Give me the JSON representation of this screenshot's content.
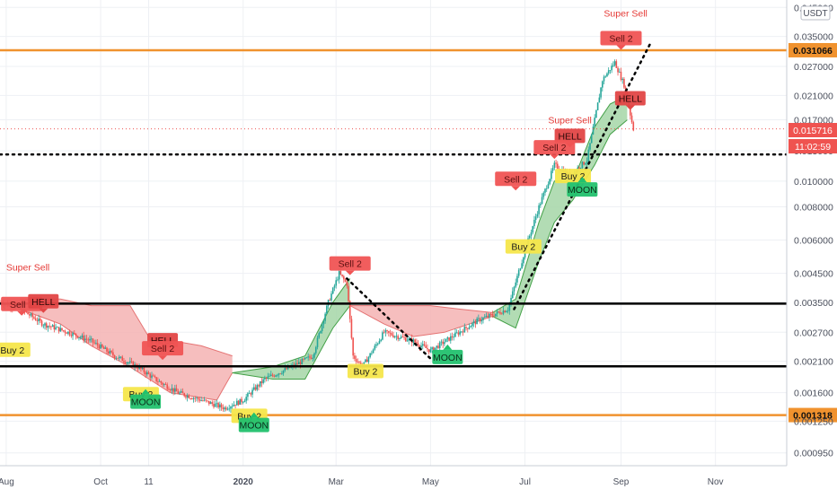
{
  "chart_data": {
    "type": "candlestick",
    "title": "",
    "quote_currency": "USDT",
    "price_axis_ticks": [
      "0.045000",
      "0.035000",
      "0.027000",
      "0.021000",
      "0.017000",
      "0.013000",
      "0.010000",
      "0.008000",
      "0.006000",
      "0.004500",
      "0.003500",
      "0.002700",
      "0.002100",
      "0.001600",
      "0.001250",
      "0.000950"
    ],
    "time_axis_labels": [
      {
        "label": "Aug",
        "date": "2019-08-01"
      },
      {
        "label": "Oct",
        "date": "2019-10-01"
      },
      {
        "label": "11",
        "date": "2019-11-01"
      },
      {
        "label": "2020",
        "date": "2020-01-01"
      },
      {
        "label": "Mar",
        "date": "2020-03-01"
      },
      {
        "label": "May",
        "date": "2020-05-01"
      },
      {
        "label": "Jul",
        "date": "2020-07-01"
      },
      {
        "label": "Sep",
        "date": "2020-09-01"
      },
      {
        "label": "Nov",
        "date": "2020-11-01"
      }
    ],
    "price_scale": "log",
    "y_range": [
      0.00085,
      0.048
    ],
    "x_range": [
      "2019-07-28",
      "2020-12-17"
    ],
    "current_price": "0.015716",
    "countdown": "11:02:59",
    "horizontal_levels": [
      {
        "price": 0.031066,
        "label": "0.031066",
        "color": "#f0922e"
      },
      {
        "price": 0.001318,
        "label": "0.001318",
        "color": "#f0922e"
      },
      {
        "price": 0.00346,
        "label": "",
        "color": "#000000"
      },
      {
        "price": 0.00201,
        "label": "",
        "color": "#000000"
      }
    ],
    "dotted_lines": [
      {
        "y": 0.0126,
        "from": "2019-07-28",
        "to": "2020-12-17"
      },
      {
        "from_date": "2020-03-08",
        "from": 0.0043,
        "to_date": "2020-05-01",
        "to": 0.00215
      },
      {
        "from_date": "2020-06-24",
        "from": 0.0033,
        "to_date": "2020-09-20",
        "to": 0.033
      }
    ],
    "cloud_segments": [
      {
        "polarity": "bearish",
        "upper": [
          [
            "2019-08-10",
            0.0036
          ],
          [
            "2019-09-05",
            0.0036
          ],
          [
            "2019-09-25",
            0.0034
          ],
          [
            "2019-10-20",
            0.0034
          ],
          [
            "2019-11-01",
            0.0026
          ],
          [
            "2019-12-05",
            0.0024
          ],
          [
            "2019-12-25",
            0.0022
          ]
        ],
        "lower": [
          [
            "2019-08-10",
            0.0033
          ],
          [
            "2019-09-05",
            0.0029
          ],
          [
            "2019-09-25",
            0.0024
          ],
          [
            "2019-10-20",
            0.002
          ],
          [
            "2019-11-15",
            0.0016
          ],
          [
            "2019-12-15",
            0.0015
          ],
          [
            "2019-12-25",
            0.0019
          ]
        ]
      },
      {
        "polarity": "bullish",
        "upper": [
          [
            "2019-12-25",
            0.0019
          ],
          [
            "2020-01-20",
            0.002
          ],
          [
            "2020-02-10",
            0.0022
          ],
          [
            "2020-02-28",
            0.0035
          ],
          [
            "2020-03-10",
            0.0043
          ]
        ],
        "lower": [
          [
            "2019-12-25",
            0.0019
          ],
          [
            "2020-01-20",
            0.0018
          ],
          [
            "2020-02-10",
            0.0018
          ],
          [
            "2020-02-28",
            0.0028
          ],
          [
            "2020-03-10",
            0.0034
          ]
        ]
      },
      {
        "polarity": "bearish",
        "upper": [
          [
            "2020-03-10",
            0.0034
          ],
          [
            "2020-04-10",
            0.0034
          ],
          [
            "2020-05-01",
            0.0034
          ],
          [
            "2020-05-20",
            0.0033
          ],
          [
            "2020-06-10",
            0.0032
          ]
        ],
        "lower": [
          [
            "2020-03-10",
            0.0034
          ],
          [
            "2020-04-01",
            0.0029
          ],
          [
            "2020-04-20",
            0.0026
          ],
          [
            "2020-05-10",
            0.0027
          ],
          [
            "2020-06-10",
            0.0031
          ]
        ]
      },
      {
        "polarity": "bullish",
        "upper": [
          [
            "2020-06-10",
            0.0032
          ],
          [
            "2020-06-25",
            0.0036
          ],
          [
            "2020-07-10",
            0.007
          ],
          [
            "2020-07-20",
            0.01
          ],
          [
            "2020-08-01",
            0.01
          ],
          [
            "2020-08-15",
            0.016
          ],
          [
            "2020-08-25",
            0.0195
          ],
          [
            "2020-09-05",
            0.021
          ]
        ],
        "lower": [
          [
            "2020-06-10",
            0.0031
          ],
          [
            "2020-06-25",
            0.0028
          ],
          [
            "2020-07-10",
            0.005
          ],
          [
            "2020-07-20",
            0.007
          ],
          [
            "2020-08-01",
            0.0085
          ],
          [
            "2020-08-15",
            0.0115
          ],
          [
            "2020-08-25",
            0.015
          ],
          [
            "2020-09-05",
            0.017
          ]
        ]
      }
    ],
    "price_path": [
      [
        "2019-07-28",
        0.0035
      ],
      [
        "2019-08-10",
        0.0033
      ],
      [
        "2019-08-25",
        0.0029
      ],
      [
        "2019-09-10",
        0.0027
      ],
      [
        "2019-09-25",
        0.0025
      ],
      [
        "2019-10-10",
        0.0022
      ],
      [
        "2019-10-25",
        0.002
      ],
      [
        "2019-11-05",
        0.0018
      ],
      [
        "2019-11-20",
        0.0016
      ],
      [
        "2019-12-05",
        0.0015
      ],
      [
        "2019-12-20",
        0.0014
      ],
      [
        "2020-01-01",
        0.0015
      ],
      [
        "2020-01-15",
        0.0018
      ],
      [
        "2020-02-01",
        0.002
      ],
      [
        "2020-02-15",
        0.0022
      ],
      [
        "2020-02-25",
        0.0035
      ],
      [
        "2020-03-03",
        0.0045
      ],
      [
        "2020-03-08",
        0.0041
      ],
      [
        "2020-03-12",
        0.0022
      ],
      [
        "2020-03-18",
        0.002
      ],
      [
        "2020-04-01",
        0.0027
      ],
      [
        "2020-04-20",
        0.0025
      ],
      [
        "2020-05-01",
        0.0023
      ],
      [
        "2020-05-15",
        0.0026
      ],
      [
        "2020-06-01",
        0.003
      ],
      [
        "2020-06-20",
        0.0033
      ],
      [
        "2020-07-01",
        0.0055
      ],
      [
        "2020-07-10",
        0.008
      ],
      [
        "2020-07-20",
        0.0115
      ],
      [
        "2020-07-30",
        0.0105
      ],
      [
        "2020-08-10",
        0.012
      ],
      [
        "2020-08-20",
        0.024
      ],
      [
        "2020-08-28",
        0.028
      ],
      [
        "2020-09-03",
        0.023
      ],
      [
        "2020-09-09",
        0.0157
      ]
    ],
    "signals": [
      {
        "label": "Super Sell",
        "kind": "text-red",
        "date": "2019-08-15",
        "price": 0.0046
      },
      {
        "label": "Sell 2",
        "kind": "sell",
        "date": "2019-08-11",
        "price": 0.00345
      },
      {
        "label": "HELL",
        "kind": "hell",
        "date": "2019-08-25",
        "price": 0.00353
      },
      {
        "label": "Buy 2",
        "kind": "buy",
        "date": "2019-08-05",
        "price": 0.00232
      },
      {
        "label": "HELL",
        "kind": "hell",
        "date": "2019-11-10",
        "price": 0.00252
      },
      {
        "label": "Sell 2",
        "kind": "sell",
        "date": "2019-11-10",
        "price": 0.00235
      },
      {
        "label": "Buy 2",
        "kind": "buy",
        "date": "2019-10-27",
        "price": 0.00158
      },
      {
        "label": "MOON",
        "kind": "moon",
        "date": "2019-10-30",
        "price": 0.00148
      },
      {
        "label": "Buy 2",
        "kind": "buy",
        "date": "2020-01-05",
        "price": 0.00131
      },
      {
        "label": "MOON",
        "kind": "moon",
        "date": "2020-01-08",
        "price": 0.00121
      },
      {
        "label": "Sell 2",
        "kind": "sell",
        "date": "2020-03-10",
        "price": 0.0049
      },
      {
        "label": "Buy 2",
        "kind": "buy",
        "date": "2020-03-20",
        "price": 0.00193
      },
      {
        "label": "MOON",
        "kind": "moon",
        "date": "2020-05-12",
        "price": 0.00218
      },
      {
        "label": "Sell 2",
        "kind": "sell",
        "date": "2020-06-25",
        "price": 0.0102
      },
      {
        "label": "Buy 2",
        "kind": "buy",
        "date": "2020-06-30",
        "price": 0.00568
      },
      {
        "label": "Super Sell",
        "kind": "text-red",
        "date": "2020-07-30",
        "price": 0.0165
      },
      {
        "label": "HELL",
        "kind": "hell",
        "date": "2020-07-30",
        "price": 0.0148
      },
      {
        "label": "Sell 2",
        "kind": "sell",
        "date": "2020-07-20",
        "price": 0.0134
      },
      {
        "label": "Buy 2",
        "kind": "buy",
        "date": "2020-08-01",
        "price": 0.01045
      },
      {
        "label": "MOON",
        "kind": "moon",
        "date": "2020-08-07",
        "price": 0.0093
      },
      {
        "label": "Super Sell",
        "kind": "text-red",
        "date": "2020-09-04",
        "price": 0.0415
      },
      {
        "label": "Sell 2",
        "kind": "sell",
        "date": "2020-09-01",
        "price": 0.0345
      },
      {
        "label": "HELL",
        "kind": "hell",
        "date": "2020-09-07",
        "price": 0.0205
      }
    ],
    "colors": {
      "bull": "#26a69a",
      "bear": "#ef5350",
      "cloud_bull": "#a5d6a7",
      "cloud_bear": "#f5b3b3",
      "level_orange": "#f0922e",
      "level_black": "#000000",
      "current_price": "#ef5350",
      "sell": "#f05454",
      "hell": "#e24646",
      "buy": "#f5e64b",
      "moon": "#22c16e",
      "grid": "#eef0f4"
    }
  }
}
